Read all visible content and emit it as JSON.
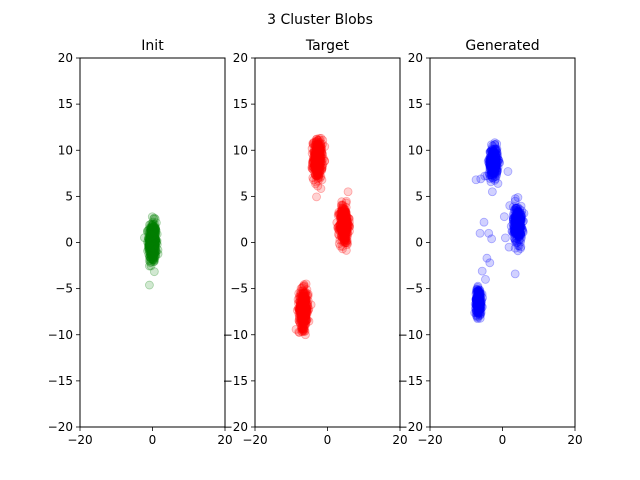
{
  "figure": {
    "title": "3 Cluster Blobs"
  },
  "chart_data": [
    {
      "type": "scatter",
      "title": "Init",
      "xlim": [
        -20,
        20
      ],
      "ylim": [
        -20,
        20
      ],
      "xticks": [
        -20,
        0,
        20
      ],
      "yticks": [
        -20,
        -15,
        -10,
        -5,
        0,
        5,
        10,
        15,
        20
      ],
      "color": "#008000",
      "clusters": [
        {
          "cx": 0.0,
          "cy": 0.0,
          "sx": 0.55,
          "sy": 1.1,
          "n": 420
        }
      ]
    },
    {
      "type": "scatter",
      "title": "Target",
      "xlim": [
        -20,
        20
      ],
      "ylim": [
        -20,
        20
      ],
      "xticks": [
        -20,
        0,
        20
      ],
      "yticks": [
        -20,
        -15,
        -10,
        -5,
        0,
        5,
        10,
        15,
        20
      ],
      "color": "#ff0000",
      "clusters": [
        {
          "cx": -2.7,
          "cy": 9.0,
          "sx": 0.65,
          "sy": 1.05,
          "n": 330
        },
        {
          "cx": 4.6,
          "cy": 1.9,
          "sx": 0.65,
          "sy": 1.05,
          "n": 330
        },
        {
          "cx": -6.6,
          "cy": -7.2,
          "sx": 0.65,
          "sy": 1.05,
          "n": 330
        }
      ]
    },
    {
      "type": "scatter",
      "title": "Generated",
      "xlim": [
        -20,
        20
      ],
      "ylim": [
        -20,
        20
      ],
      "xticks": [
        -20,
        0,
        20
      ],
      "yticks": [
        -20,
        -15,
        -10,
        -5,
        0,
        5,
        10,
        15,
        20
      ],
      "color": "#0000ff",
      "clusters": [
        {
          "cx": -2.5,
          "cy": 8.7,
          "sx": 0.6,
          "sy": 0.8,
          "n": 300
        },
        {
          "cx": 4.2,
          "cy": 2.0,
          "sx": 0.6,
          "sy": 1.0,
          "n": 280
        },
        {
          "cx": -6.6,
          "cy": -6.4,
          "sx": 0.4,
          "sy": 0.7,
          "n": 260
        }
      ],
      "outliers": [
        [
          -7.3,
          6.8
        ],
        [
          -3.8,
          1.0
        ],
        [
          -6.2,
          1.0
        ],
        [
          -3.5,
          -2.2
        ],
        [
          -4.7,
          -4.0
        ],
        [
          0.8,
          0.5
        ],
        [
          -1.5,
          7.9
        ],
        [
          1.5,
          7.7
        ],
        [
          -4.9,
          7.2
        ],
        [
          -4.3,
          -1.7
        ],
        [
          2.0,
          4.0
        ],
        [
          3.5,
          -3.4
        ],
        [
          -2.8,
          5.5
        ],
        [
          -5.1,
          2.2
        ],
        [
          0.5,
          2.8
        ],
        [
          -3.0,
          0.4
        ],
        [
          2.6,
          1.2
        ],
        [
          -5.6,
          -3.1
        ],
        [
          -6.0,
          6.9
        ],
        [
          1.8,
          -0.5
        ]
      ]
    }
  ]
}
